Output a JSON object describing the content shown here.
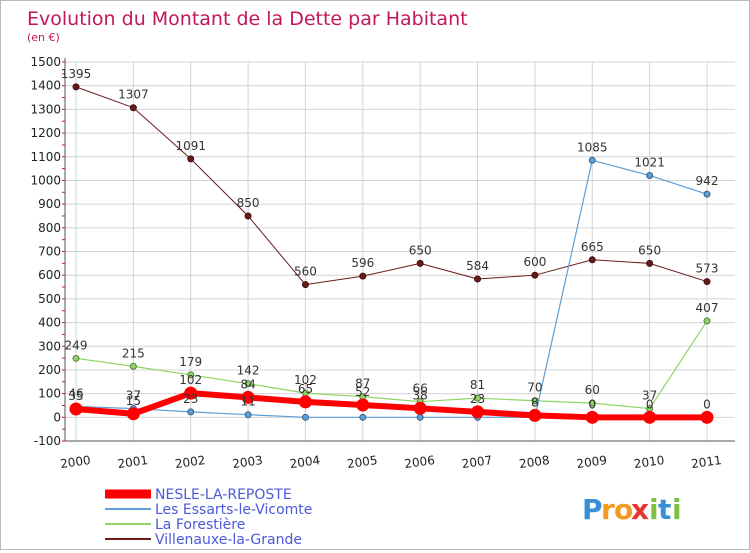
{
  "chart_data": {
    "type": "line",
    "title": "Evolution du Montant de la Dette par Habitant",
    "subtitle": "(en €)",
    "x": [
      "2000",
      "2001",
      "2002",
      "2003",
      "2004",
      "2005",
      "2006",
      "2007",
      "2008",
      "2009",
      "2010",
      "2011"
    ],
    "ylim": [
      -100,
      1500
    ],
    "yticks": [
      -100,
      0,
      100,
      200,
      300,
      400,
      500,
      600,
      700,
      800,
      900,
      1000,
      1100,
      1200,
      1300,
      1400,
      1500
    ],
    "grid": true,
    "legend_position": "bottom-left",
    "series": [
      {
        "name": "Villenauxe-la-Grande",
        "color": "#6b1a1a",
        "line_width": 1,
        "values": [
          1395,
          1307,
          1091,
          850,
          560,
          596,
          650,
          584,
          600,
          665,
          650,
          573
        ],
        "labels": [
          "1395",
          "1307",
          "1091",
          "850",
          "560",
          "596",
          "650",
          "584",
          "600",
          "665",
          "650",
          "573"
        ]
      },
      {
        "name": "La Forestière",
        "color": "#8fd464",
        "line_width": 1.2,
        "values": [
          249,
          215,
          179,
          142,
          102,
          87,
          66,
          81,
          70,
          60,
          37,
          407
        ],
        "labels": [
          "249",
          "215",
          "179",
          "142",
          "102",
          "87",
          "66",
          "81",
          "70",
          "60",
          "37",
          "407"
        ]
      },
      {
        "name": "Les Essarts-le-Vicomte",
        "color": "#5d9fd8",
        "line_width": 1.2,
        "values": [
          46,
          37,
          23,
          11,
          0,
          0,
          0,
          0,
          0,
          1085,
          1021,
          942
        ],
        "labels": [
          "46",
          "37",
          "23",
          "11",
          "",
          "",
          "",
          "",
          "",
          "1085",
          "1021",
          "942"
        ]
      },
      {
        "name": "NESLE-LA-REPOSTE",
        "color": "#ff0000",
        "line_width": 6,
        "values": [
          35,
          15,
          102,
          84,
          65,
          52,
          38,
          23,
          8,
          0,
          0,
          0
        ],
        "labels": [
          "35",
          "15",
          "102",
          "84",
          "65",
          "52",
          "38",
          "23",
          "8",
          "0",
          "0",
          "0"
        ]
      }
    ]
  },
  "legend": [
    {
      "label": "NESLE-LA-REPOSTE",
      "color": "#ff0000",
      "thick": true
    },
    {
      "label": "Les Essarts-le-Vicomte",
      "color": "#5d9fd8",
      "thick": false
    },
    {
      "label": "La Forestière",
      "color": "#8fd464",
      "thick": false
    },
    {
      "label": "Villenauxe-la-Grande",
      "color": "#6b1a1a",
      "thick": false
    }
  ],
  "brand": {
    "letters": [
      "P",
      "r",
      "o",
      "x",
      "i",
      "t",
      "i"
    ],
    "colors": [
      "#3b8fd6",
      "#f39a1e",
      "#f39a1e",
      "#e8342e",
      "#7cc142",
      "#3b8fd6",
      "#7cc142"
    ]
  }
}
